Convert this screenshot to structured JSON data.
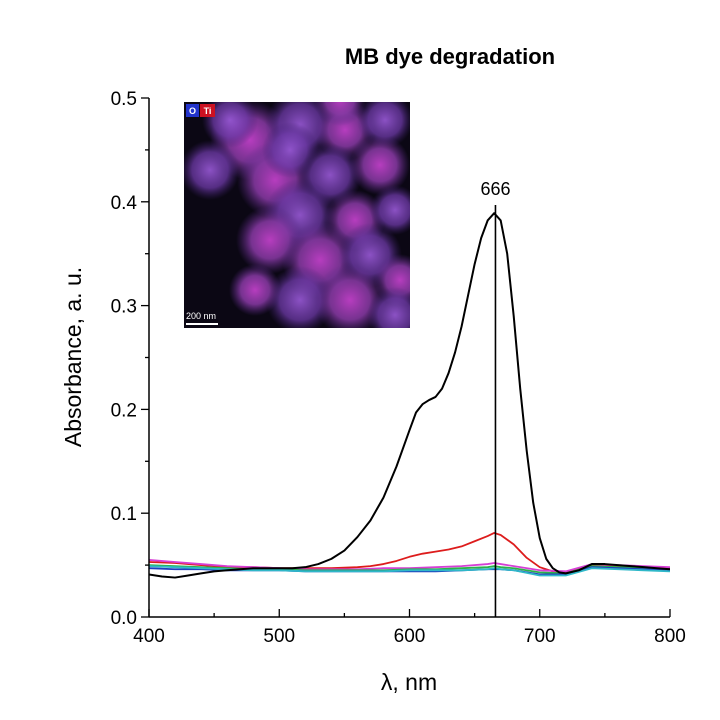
{
  "chart_data": {
    "type": "line",
    "title": "MB dye degradation",
    "xlabel": "λ, nm",
    "ylabel": "Absorbance, a. u.",
    "xlim": [
      400,
      800
    ],
    "ylim": [
      0.0,
      0.5
    ],
    "xticks": [
      "400",
      "500",
      "600",
      "700",
      "800"
    ],
    "yticks": [
      "0.0",
      "0.1",
      "0.2",
      "0.3",
      "0.4",
      "0.5"
    ],
    "grid": false,
    "legend": "none",
    "annotation": {
      "text": "666",
      "x": 666
    },
    "series": [
      {
        "color": "#000000",
        "x": [
          400,
          410,
          420,
          430,
          440,
          450,
          460,
          470,
          480,
          490,
          500,
          510,
          520,
          530,
          540,
          550,
          560,
          570,
          580,
          590,
          600,
          605,
          610,
          615,
          620,
          625,
          630,
          635,
          640,
          645,
          650,
          655,
          660,
          665,
          670,
          675,
          680,
          685,
          690,
          695,
          700,
          705,
          710,
          715,
          720,
          730,
          740,
          750,
          760,
          770,
          780,
          790,
          800
        ],
        "y": [
          0.041,
          0.039,
          0.038,
          0.04,
          0.042,
          0.044,
          0.045,
          0.046,
          0.047,
          0.047,
          0.047,
          0.047,
          0.048,
          0.051,
          0.056,
          0.064,
          0.077,
          0.093,
          0.115,
          0.145,
          0.18,
          0.197,
          0.205,
          0.209,
          0.212,
          0.22,
          0.235,
          0.255,
          0.28,
          0.31,
          0.34,
          0.365,
          0.382,
          0.389,
          0.382,
          0.35,
          0.29,
          0.22,
          0.16,
          0.11,
          0.076,
          0.056,
          0.047,
          0.043,
          0.042,
          0.045,
          0.051,
          0.051,
          0.05,
          0.049,
          0.048,
          0.047,
          0.046
        ]
      },
      {
        "color": "#dd1c1c",
        "x": [
          400,
          420,
          440,
          460,
          480,
          500,
          520,
          540,
          560,
          570,
          580,
          590,
          600,
          610,
          620,
          630,
          640,
          650,
          660,
          665,
          670,
          680,
          690,
          700,
          710,
          720,
          740,
          760,
          780,
          800
        ],
        "y": [
          0.053,
          0.052,
          0.05,
          0.048,
          0.048,
          0.047,
          0.047,
          0.047,
          0.048,
          0.049,
          0.051,
          0.054,
          0.058,
          0.061,
          0.063,
          0.065,
          0.068,
          0.073,
          0.078,
          0.081,
          0.079,
          0.07,
          0.057,
          0.048,
          0.044,
          0.043,
          0.05,
          0.049,
          0.048,
          0.047
        ]
      },
      {
        "color": "#d63fd6",
        "x": [
          400,
          420,
          440,
          460,
          480,
          500,
          520,
          540,
          560,
          580,
          600,
          620,
          640,
          660,
          665,
          670,
          680,
          700,
          720,
          740,
          760,
          780,
          800
        ],
        "y": [
          0.055,
          0.053,
          0.051,
          0.049,
          0.048,
          0.047,
          0.046,
          0.046,
          0.046,
          0.047,
          0.047,
          0.048,
          0.049,
          0.051,
          0.052,
          0.051,
          0.049,
          0.045,
          0.044,
          0.051,
          0.05,
          0.049,
          0.048
        ]
      },
      {
        "color": "#2bb34a",
        "x": [
          400,
          420,
          440,
          460,
          480,
          500,
          520,
          540,
          560,
          580,
          600,
          620,
          640,
          660,
          665,
          670,
          680,
          700,
          720,
          740,
          760,
          780,
          800
        ],
        "y": [
          0.05,
          0.049,
          0.048,
          0.047,
          0.046,
          0.046,
          0.045,
          0.045,
          0.045,
          0.045,
          0.046,
          0.046,
          0.047,
          0.048,
          0.049,
          0.048,
          0.047,
          0.043,
          0.042,
          0.049,
          0.048,
          0.047,
          0.046
        ]
      },
      {
        "color": "#1f3fbf",
        "x": [
          400,
          420,
          440,
          460,
          480,
          500,
          520,
          540,
          560,
          580,
          600,
          620,
          640,
          660,
          665,
          670,
          680,
          700,
          720,
          740,
          760,
          780,
          800
        ],
        "y": [
          0.047,
          0.046,
          0.046,
          0.045,
          0.045,
          0.045,
          0.044,
          0.044,
          0.044,
          0.044,
          0.044,
          0.044,
          0.045,
          0.046,
          0.046,
          0.046,
          0.045,
          0.041,
          0.041,
          0.048,
          0.047,
          0.046,
          0.045
        ]
      },
      {
        "color": "#2fb8c8",
        "x": [
          400,
          420,
          440,
          460,
          480,
          500,
          520,
          540,
          560,
          580,
          600,
          620,
          640,
          660,
          665,
          670,
          680,
          700,
          720,
          740,
          760,
          780,
          800
        ],
        "y": [
          0.049,
          0.048,
          0.047,
          0.046,
          0.045,
          0.045,
          0.044,
          0.044,
          0.044,
          0.044,
          0.045,
          0.045,
          0.045,
          0.046,
          0.047,
          0.046,
          0.045,
          0.04,
          0.04,
          0.047,
          0.046,
          0.045,
          0.044
        ]
      }
    ]
  },
  "inset": {
    "labels": {
      "o": "O",
      "ti": "Ti"
    },
    "colors": {
      "o": "#2233cc",
      "ti": "#cc1122",
      "background": "#0b0714"
    },
    "scale_bar": "200 nm"
  }
}
